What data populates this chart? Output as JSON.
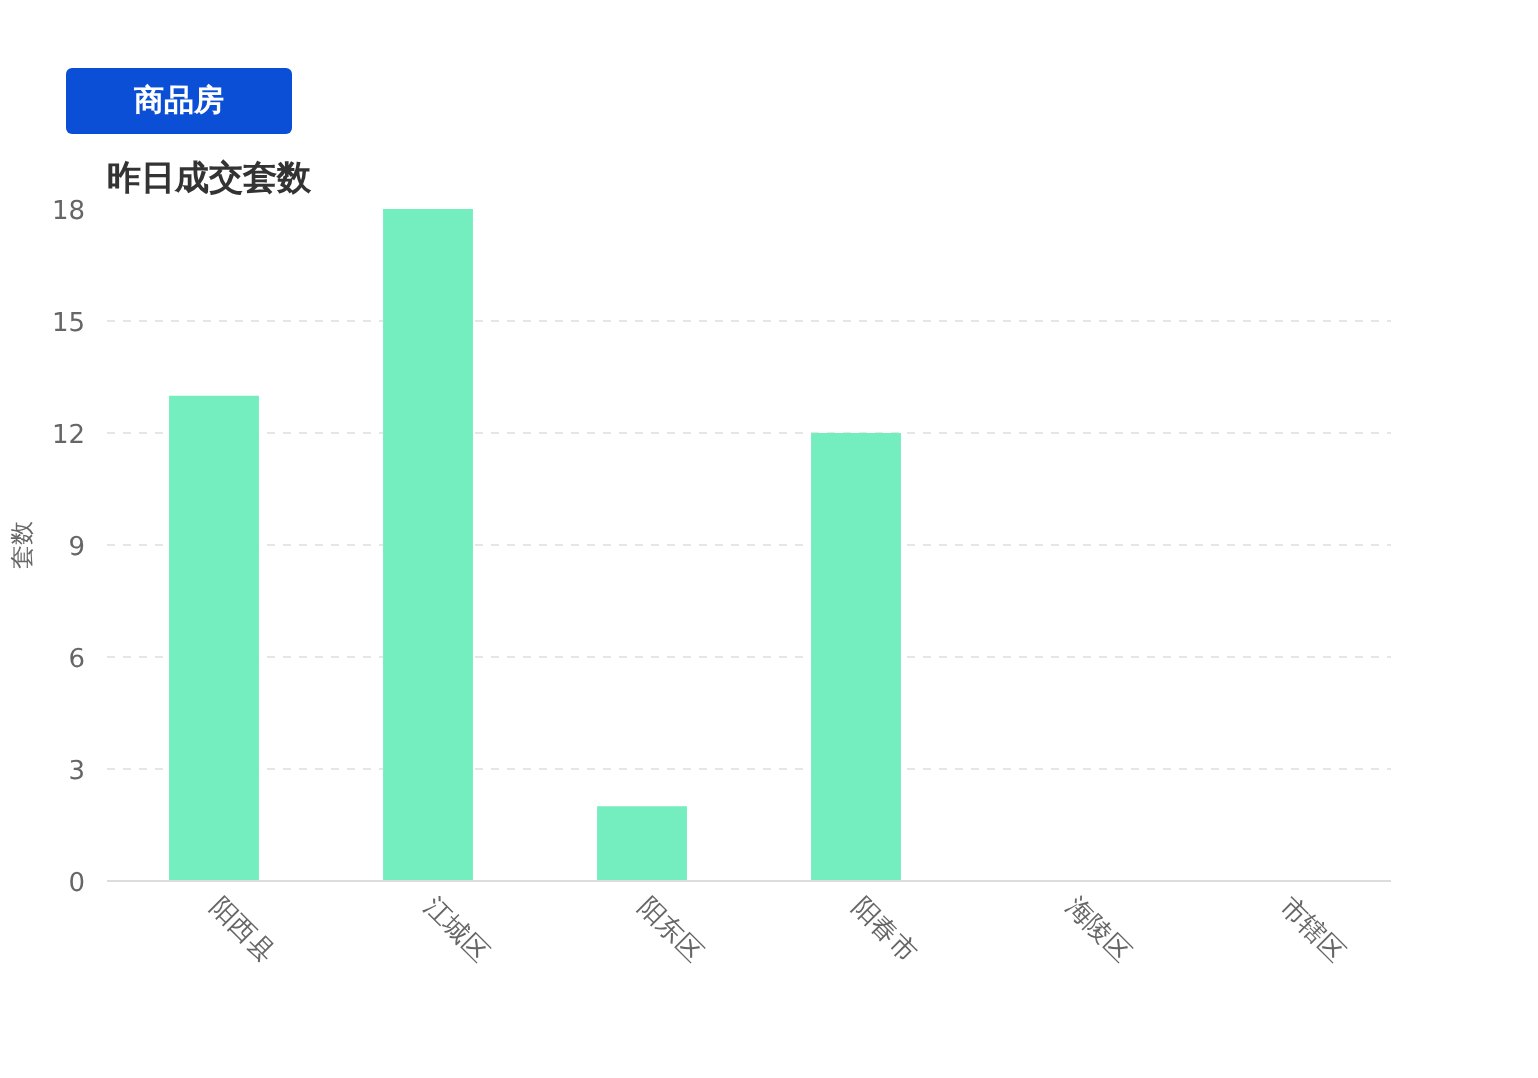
{
  "chart_data": {
    "type": "bar",
    "title": "昨日成交套数",
    "ylabel": "套数",
    "annotations": [
      "商品房"
    ],
    "categories": [
      "阳西县",
      "江城区",
      "阳东区",
      "阳春市",
      "海陵区",
      "市辖区"
    ],
    "values": [
      13,
      18,
      2,
      12,
      0,
      0
    ],
    "color": "#74edbf",
    "ylim": [
      0,
      18
    ],
    "yticks": [
      0,
      3,
      6,
      9,
      12,
      15,
      18
    ],
    "grid": "y"
  }
}
